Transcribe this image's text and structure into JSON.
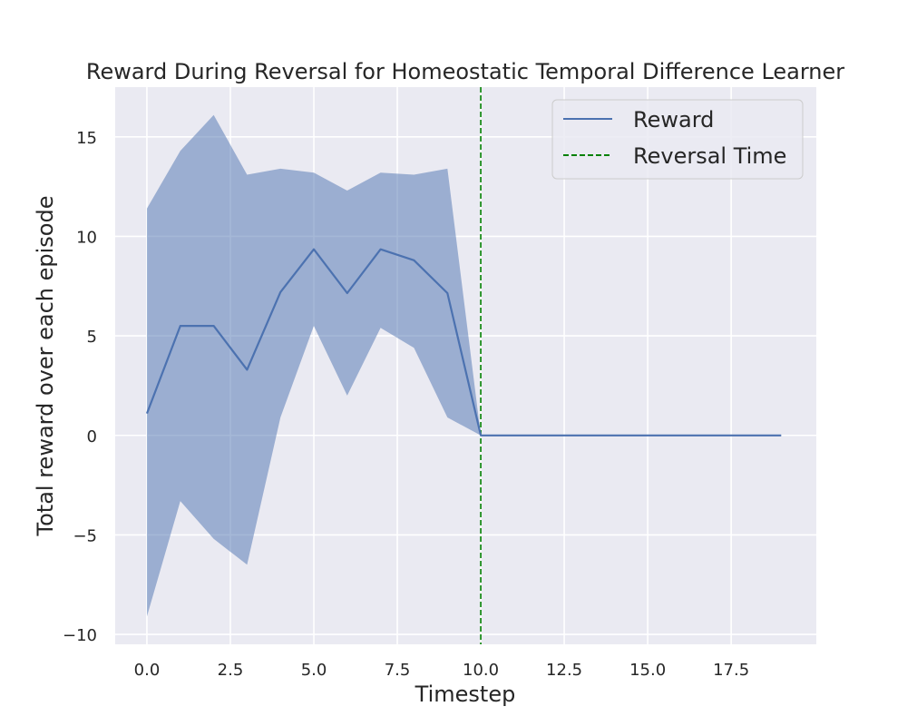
{
  "chart_data": {
    "type": "line",
    "title": "Reward During Reversal for Homeostatic Temporal Difference Learner",
    "xlabel": "Timestep",
    "ylabel": "Total reward over each episode",
    "xlim": [
      -0.95,
      20.05
    ],
    "ylim": [
      -10.5,
      17.5
    ],
    "grid": true,
    "background": "#EAEAF2",
    "x_ticks": [
      0.0,
      2.5,
      5.0,
      7.5,
      10.0,
      12.5,
      15.0,
      17.5
    ],
    "x_tick_labels": [
      "0.0",
      "2.5",
      "5.0",
      "7.5",
      "10.0",
      "12.5",
      "15.0",
      "17.5"
    ],
    "y_ticks": [
      -10,
      -5,
      0,
      5,
      10,
      15
    ],
    "y_tick_labels": [
      "−10",
      "−5",
      "0",
      "5",
      "10",
      "15"
    ],
    "legend_position": "top-right",
    "series": [
      {
        "name": "Reward",
        "color": "#4C72B0",
        "x": [
          0,
          1,
          2,
          3,
          4,
          5,
          6,
          7,
          8,
          9,
          10,
          11,
          12,
          13,
          14,
          15,
          16,
          17,
          18,
          19
        ],
        "values": [
          1.1,
          5.5,
          5.5,
          3.3,
          7.2,
          9.35,
          7.15,
          9.35,
          8.8,
          7.15,
          0,
          0,
          0,
          0,
          0,
          0,
          0,
          0,
          0,
          0
        ],
        "lower": [
          -9.1,
          -3.3,
          -5.2,
          -6.5,
          0.9,
          5.5,
          2.0,
          5.4,
          4.4,
          0.9,
          0,
          0,
          0,
          0,
          0,
          0,
          0,
          0,
          0,
          0
        ],
        "upper": [
          11.4,
          14.3,
          16.1,
          13.1,
          13.4,
          13.2,
          12.3,
          13.2,
          13.1,
          13.4,
          0,
          0,
          0,
          0,
          0,
          0,
          0,
          0,
          0,
          0
        ],
        "band_color": "#4C72B0"
      }
    ],
    "vlines": [
      {
        "name": "Reversal Time",
        "x": 10,
        "color": "#008000",
        "style": "dashed"
      }
    ]
  }
}
